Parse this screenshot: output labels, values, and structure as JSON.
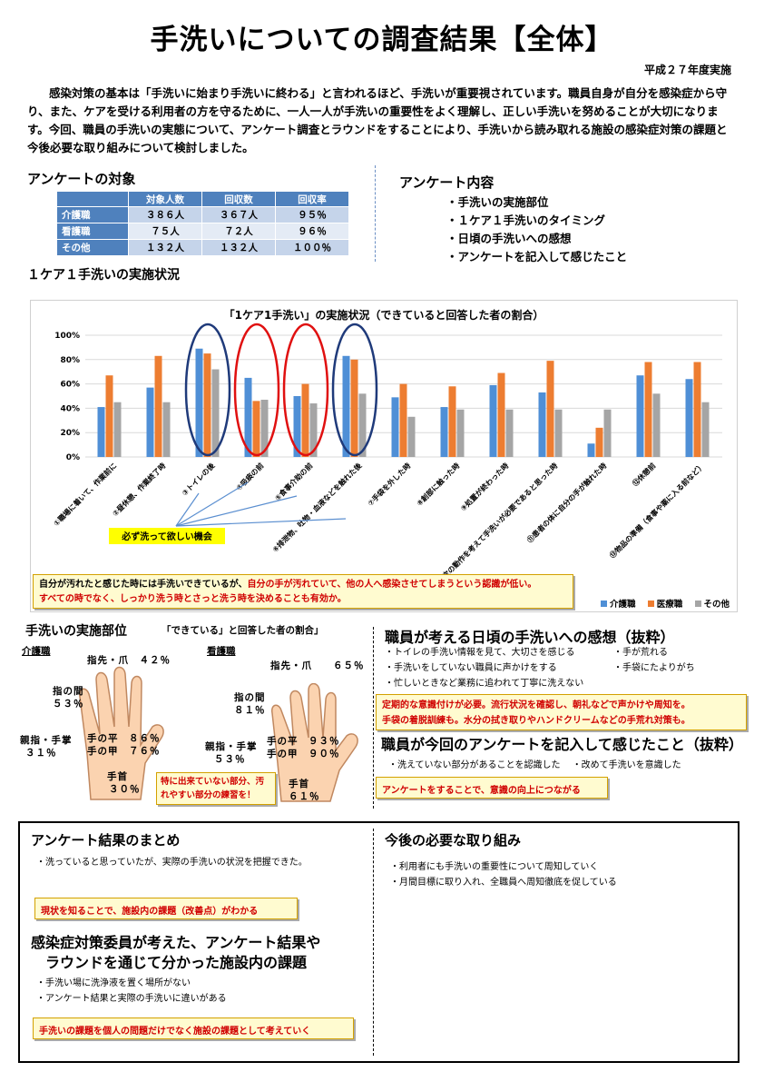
{
  "title": "手洗いについての調査結果【全体】",
  "date": "平成２７年度実施",
  "intro": "感染対策の基本は「手洗いに始まり手洗いに終わる」と言われるほど、手洗いが重要視されています。職員自身が自分を感染症から守り、また、ケアを受ける利用者の方を守るために、一人一人が手洗いの重要性をよく理解し、正しい手洗いを努めることが大切になります。今回、職員の手洗いの実態について、アンケート調査とラウンドをすることにより、手洗いから読み取れる施設の感染症対策の課題と今後必要な取り組みについて検討しました。",
  "target": {
    "heading": "アンケートの対象",
    "headers": [
      "",
      "対象人数",
      "回収数",
      "回収率"
    ],
    "rows": [
      [
        "介護職",
        "３８６人",
        "３６７人",
        "９５％"
      ],
      [
        "看護職",
        "７５人",
        "７２人",
        "９６％"
      ],
      [
        "その他",
        "１３２人",
        "１３２人",
        "１００％"
      ]
    ]
  },
  "content": {
    "heading": "アンケート内容",
    "items": [
      "・手洗いの実施部位",
      "・１ケア１手洗いのタイミング",
      "・日頃の手洗いへの感想",
      "・アンケートを記入して感じたこと"
    ]
  },
  "section_chart_heading": "１ケア１手洗いの実施状況",
  "chart_data": {
    "type": "bar",
    "title": "「1ケア1手洗い」の実施状況（できていると回答した者の割合）",
    "ylim": [
      0,
      100
    ],
    "yticks": [
      "0%",
      "20%",
      "40%",
      "60%",
      "80%",
      "100%"
    ],
    "categories": [
      "①職場に着いて、作業前に",
      "②昼休憩、作業終了時",
      "③トイレの後",
      "④吸痰の前",
      "⑤食事介助の前",
      "⑥排泄物、吐物・血液などを触れた後",
      "⑦手袋を外した時",
      "⑧創部に触った時",
      "⑨処置が終わった時",
      "⑩次の動作を考えて手洗いが必要であると思った時",
      "⑪患者の体に自分の手が触れた時",
      "⑫休憩前",
      "⑬物品の準備（食事や薬に入る前など）"
    ],
    "series": [
      {
        "name": "介護職",
        "color": "#4f8fd6",
        "values": [
          41,
          57,
          89,
          65,
          50,
          83,
          49,
          41,
          59,
          53,
          11,
          67,
          64
        ]
      },
      {
        "name": "医療職",
        "color": "#ed7d31",
        "values": [
          67,
          83,
          85,
          46,
          60,
          80,
          60,
          58,
          69,
          79,
          24,
          78,
          78
        ]
      },
      {
        "name": "その他",
        "color": "#a5a5a5",
        "values": [
          45,
          45,
          72,
          47,
          44,
          52,
          33,
          39,
          39,
          39,
          39,
          52,
          45
        ]
      }
    ],
    "annotation": "必ず洗って欲しい機会",
    "legend_position": "bottom-right"
  },
  "chart_note": {
    "line1_a": "自分が汚れたと感じた時には手洗いできているが、",
    "line1_b": "自分の手が汚れていて、他の人へ感染させてしまうという認識が低い。",
    "line2": "すべての時でなく、しっかり洗う時とさっと洗う時を決めることも有効か。"
  },
  "parts": {
    "heading": "手洗いの実施部位",
    "sub": "「できている」と回答した者の割合」",
    "care_label": "介護職",
    "nurse_label": "看護職",
    "care": {
      "tips": "指先・爪　４２％",
      "between_1": "指の間",
      "between_2": "５３％",
      "thumb_1": "親指・手掌",
      "thumb_2": "３１％",
      "palm": "手の平　８６％",
      "back": "手の甲　７６％",
      "wrist_1": "手首",
      "wrist_2": "３０％"
    },
    "nurse": {
      "tips": "指先・爪　　６５％",
      "between_1": "指の間",
      "between_2": "８１％",
      "thumb_1": "親指・手掌",
      "thumb_2": "５３％",
      "palm": "手の平　９３％",
      "back": "手の甲　９０％",
      "wrist_1": "手首",
      "wrist_2": "６１％"
    },
    "note": "特に出来ていない部分、汚れやすい部分の練習を！"
  },
  "impressions": {
    "heading": "職員が考える日頃の手洗いへの感想（抜粋）",
    "left": [
      "・トイレの手洗い情報を見て、大切さを感じる",
      "・手洗いをしていない職員に声かけをする",
      "・忙しいときなど業務に追われて丁寧に洗えない"
    ],
    "right": [
      "・手が荒れる",
      "・手袋にたよりがち"
    ],
    "note1": "定期的な意識付けが必要。流行状況を確認し、朝礼などで声かけや周知を。",
    "note2": "手袋の着脱訓練も。水分の拭き取りやハンドクリームなどの手荒れ対策も。"
  },
  "feel": {
    "heading": "職員が今回のアンケートを記入して感じたこと（抜粋）",
    "items": [
      "・洗えていない部分があることを認識した",
      "・改めて手洗いを意識した"
    ],
    "note": "アンケートをすることで、意識の向上につながる"
  },
  "summary": {
    "heading": "アンケート結果のまとめ",
    "item": "・洗っていると思っていたが、実際の手洗いの状況を把握できた。",
    "note": "現状を知ることで、施設内の課題（改善点）がわかる"
  },
  "issues": {
    "heading1": "感染症対策委員が考えた、アンケート結果や",
    "heading2": "ラウンドを通じて分かった施設内の課題",
    "items": [
      "・手洗い場に洗浄液を置く場所がない",
      "・アンケート結果と実際の手洗いに違いがある"
    ],
    "note": "手洗いの課題を個人の問題だけでなく施設の課題として考えていく"
  },
  "future": {
    "heading": "今後の必要な取り組み",
    "items": [
      "・利用者にも手洗いの重要性について周知していく",
      "・月間目標に取り入れ、全職員へ周知徹底を促している"
    ]
  }
}
